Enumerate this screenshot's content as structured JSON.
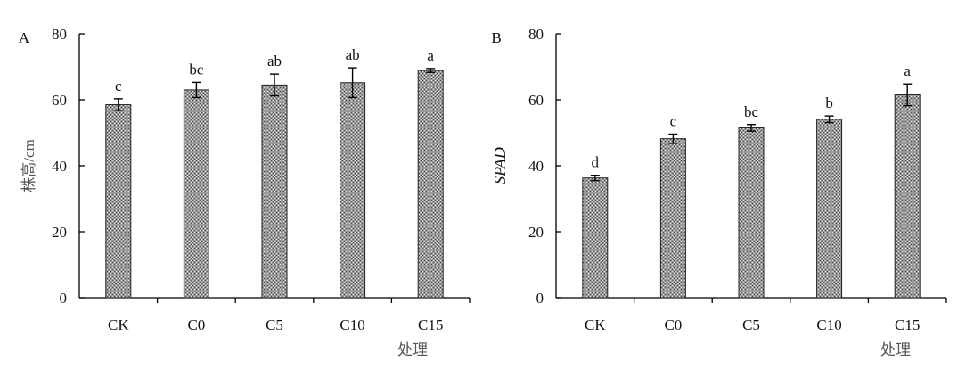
{
  "chart_data": [
    {
      "type": "bar",
      "panel_label": "A",
      "categories": [
        "CK",
        "C0",
        "C5",
        "C10",
        "C15"
      ],
      "values": [
        58.5,
        63,
        64.5,
        65.2,
        68.9
      ],
      "errors": [
        1.8,
        2.3,
        3.3,
        4.5,
        0.6
      ],
      "significance": [
        "c",
        "bc",
        "ab",
        "ab",
        "a"
      ],
      "xlabel": "处理",
      "ylabel": "株高/cm",
      "ylim": [
        0,
        80
      ],
      "yticks": [
        0,
        20,
        40,
        60,
        80
      ],
      "grid": false,
      "legend": "none",
      "bar_fill": "#8c8c8c"
    },
    {
      "type": "bar",
      "panel_label": "B",
      "categories": [
        "CK",
        "C0",
        "C5",
        "C10",
        "C15"
      ],
      "values": [
        36.3,
        48.2,
        51.5,
        54.1,
        61.5
      ],
      "errors": [
        0.8,
        1.4,
        1.0,
        1.0,
        3.3
      ],
      "significance": [
        "d",
        "c",
        "bc",
        "b",
        "a"
      ],
      "xlabel": "处理",
      "ylabel": "SPAD",
      "ylim": [
        0,
        80
      ],
      "yticks": [
        0,
        20,
        40,
        60,
        80
      ],
      "grid": false,
      "legend": "none",
      "bar_fill": "#8c8c8c"
    }
  ]
}
